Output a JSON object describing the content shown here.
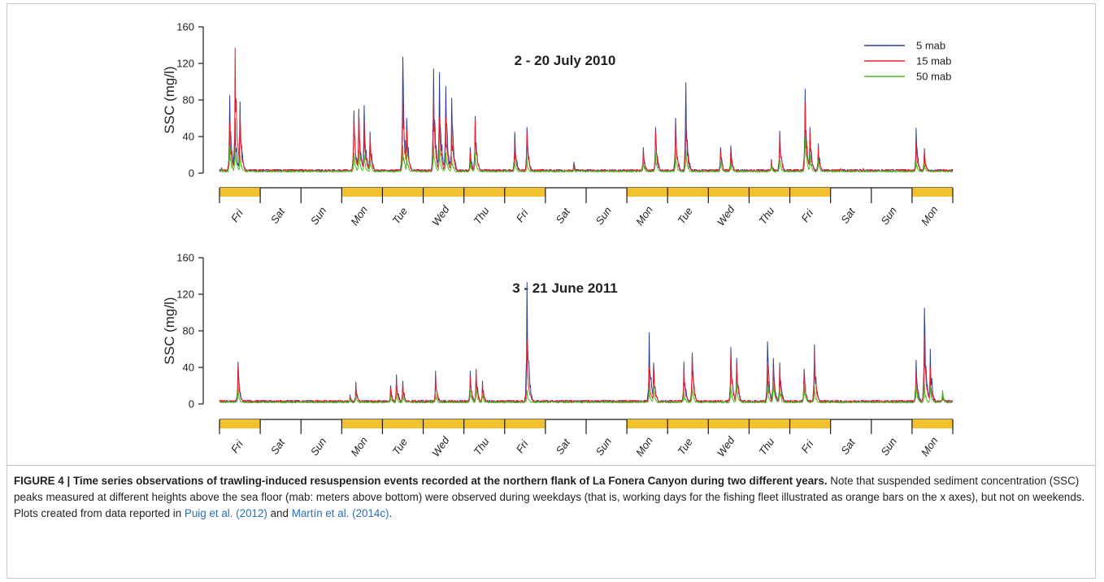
{
  "figure": {
    "caption_lead": "FIGURE 4 | Time series observations of trawling-induced resuspension events recorded at the northern flank of La Fonera Canyon during two different years.",
    "caption_body_1": " Note that suspended sediment concentration (SSC) peaks measured at different heights above the sea floor (mab: meters above bottom) were observed during weekdays (that is, working days for the fishing fleet illustrated as orange bars on the x axes), but not on weekends. Plots created from data reported in ",
    "ref_1": "Puig et al. (2012)",
    "caption_and": " and ",
    "ref_2": "Martín et al. (2014c)",
    "caption_end": "."
  },
  "colors": {
    "series_5": "#2b3f99",
    "series_15": "#e8202a",
    "series_50": "#4cb81e",
    "workday_bar": "#f2c12e",
    "axis": "#1a1a1a",
    "reference_link": "#2a6ebb"
  },
  "chart_data": [
    {
      "type": "line",
      "title": "2 - 20 July 2010",
      "ylabel": "SSC (mg/l)",
      "ylim": [
        0,
        160
      ],
      "yticks": [
        0,
        40,
        80,
        120,
        160
      ],
      "xlim": [
        0,
        18
      ],
      "day_labels": [
        "Fri",
        "Sat",
        "Sun",
        "Mon",
        "Tue",
        "Wed",
        "Thu",
        "Fri",
        "Sat",
        "Sun",
        "Mon",
        "Tue",
        "Wed",
        "Thu",
        "Fri",
        "Sat",
        "Sun",
        "Mon"
      ],
      "workdays": [
        true,
        false,
        false,
        true,
        true,
        true,
        true,
        true,
        false,
        false,
        true,
        true,
        true,
        true,
        true,
        false,
        false,
        true
      ],
      "legend": {
        "position": "top-right",
        "entries": [
          "5 mab",
          "15 mab",
          "50 mab"
        ]
      },
      "series": [
        {
          "name": "5 mab",
          "peaks": [
            [
              0.05,
              6
            ],
            [
              0.25,
              85
            ],
            [
              0.38,
              60
            ],
            [
              0.5,
              78
            ],
            [
              3.3,
              68
            ],
            [
              3.42,
              70
            ],
            [
              3.55,
              74
            ],
            [
              3.7,
              45
            ],
            [
              4.5,
              127
            ],
            [
              4.6,
              60
            ],
            [
              5.25,
              114
            ],
            [
              5.4,
              110
            ],
            [
              5.55,
              95
            ],
            [
              5.7,
              82
            ],
            [
              6.28,
              62
            ],
            [
              6.15,
              28
            ],
            [
              7.25,
              45
            ],
            [
              7.55,
              50
            ],
            [
              8.7,
              12
            ],
            [
              10.4,
              28
            ],
            [
              10.7,
              50
            ],
            [
              11.2,
              60
            ],
            [
              11.45,
              99
            ],
            [
              12.3,
              28
            ],
            [
              12.55,
              30
            ],
            [
              13.55,
              15
            ],
            [
              13.75,
              46
            ],
            [
              14.38,
              92
            ],
            [
              14.5,
              50
            ],
            [
              14.7,
              32
            ],
            [
              15.25,
              5
            ],
            [
              15.8,
              5
            ],
            [
              17.1,
              49
            ],
            [
              17.3,
              27
            ]
          ],
          "baseline": 3
        },
        {
          "name": "15 mab",
          "peaks": [
            [
              0.05,
              5
            ],
            [
              0.25,
              55
            ],
            [
              0.38,
              137
            ],
            [
              0.5,
              65
            ],
            [
              3.3,
              60
            ],
            [
              3.42,
              66
            ],
            [
              3.55,
              56
            ],
            [
              3.7,
              40
            ],
            [
              4.5,
              88
            ],
            [
              4.6,
              48
            ],
            [
              5.25,
              85
            ],
            [
              5.4,
              60
            ],
            [
              5.55,
              60
            ],
            [
              5.7,
              55
            ],
            [
              6.28,
              58
            ],
            [
              6.15,
              22
            ],
            [
              7.25,
              35
            ],
            [
              7.55,
              45
            ],
            [
              8.7,
              9
            ],
            [
              10.4,
              25
            ],
            [
              10.7,
              45
            ],
            [
              11.2,
              50
            ],
            [
              11.45,
              58
            ],
            [
              12.3,
              24
            ],
            [
              12.55,
              25
            ],
            [
              13.55,
              12
            ],
            [
              13.75,
              40
            ],
            [
              14.38,
              78
            ],
            [
              14.5,
              45
            ],
            [
              14.7,
              28
            ],
            [
              15.25,
              4
            ],
            [
              15.8,
              4
            ],
            [
              17.1,
              35
            ],
            [
              17.3,
              25
            ]
          ],
          "baseline": 3
        },
        {
          "name": "50 mab",
          "peaks": [
            [
              0.05,
              4
            ],
            [
              0.25,
              28
            ],
            [
              0.38,
              30
            ],
            [
              0.5,
              20
            ],
            [
              3.3,
              22
            ],
            [
              3.42,
              25
            ],
            [
              3.55,
              20
            ],
            [
              3.7,
              15
            ],
            [
              4.5,
              30
            ],
            [
              4.6,
              20
            ],
            [
              5.25,
              30
            ],
            [
              5.4,
              25
            ],
            [
              5.55,
              22
            ],
            [
              5.7,
              18
            ],
            [
              6.28,
              22
            ],
            [
              6.15,
              12
            ],
            [
              7.25,
              15
            ],
            [
              7.55,
              16
            ],
            [
              8.7,
              5
            ],
            [
              10.4,
              12
            ],
            [
              10.7,
              22
            ],
            [
              11.2,
              20
            ],
            [
              11.45,
              25
            ],
            [
              12.3,
              12
            ],
            [
              12.55,
              12
            ],
            [
              13.55,
              8
            ],
            [
              13.75,
              16
            ],
            [
              14.38,
              38
            ],
            [
              14.5,
              20
            ],
            [
              14.7,
              14
            ],
            [
              15.25,
              3
            ],
            [
              15.8,
              3
            ],
            [
              17.1,
              14
            ],
            [
              17.3,
              12
            ]
          ],
          "baseline": 2
        }
      ]
    },
    {
      "type": "line",
      "title": "3 - 21 June 2011",
      "ylabel": "SSC (mg/l)",
      "ylim": [
        0,
        160
      ],
      "yticks": [
        0,
        40,
        80,
        120,
        160
      ],
      "xlim": [
        0,
        18
      ],
      "day_labels": [
        "Fri",
        "Sat",
        "Sun",
        "Mon",
        "Tue",
        "Wed",
        "Thu",
        "Fri",
        "Sat",
        "Sun",
        "Mon",
        "Tue",
        "Wed",
        "Thu",
        "Fri",
        "Sat",
        "Sun",
        "Mon"
      ],
      "workdays": [
        true,
        false,
        false,
        true,
        true,
        true,
        true,
        true,
        false,
        false,
        true,
        true,
        true,
        true,
        true,
        false,
        false,
        true
      ],
      "legend": {
        "position": "none",
        "entries": []
      },
      "series": [
        {
          "name": "5 mab",
          "peaks": [
            [
              0.45,
              46
            ],
            [
              3.2,
              10
            ],
            [
              3.35,
              24
            ],
            [
              4.2,
              20
            ],
            [
              4.35,
              32
            ],
            [
              4.5,
              25
            ],
            [
              5.3,
              36
            ],
            [
              6.15,
              36
            ],
            [
              6.3,
              38
            ],
            [
              6.45,
              25
            ],
            [
              7.55,
              133
            ],
            [
              10.55,
              78
            ],
            [
              10.65,
              45
            ],
            [
              11.4,
              46
            ],
            [
              11.6,
              56
            ],
            [
              12.55,
              62
            ],
            [
              12.7,
              50
            ],
            [
              13.45,
              68
            ],
            [
              13.6,
              50
            ],
            [
              13.75,
              45
            ],
            [
              14.35,
              38
            ],
            [
              14.6,
              65
            ],
            [
              17.1,
              48
            ],
            [
              17.3,
              105
            ],
            [
              17.45,
              60
            ],
            [
              17.75,
              12
            ]
          ],
          "baseline": 3
        },
        {
          "name": "15 mab",
          "peaks": [
            [
              0.45,
              42
            ],
            [
              3.2,
              8
            ],
            [
              3.35,
              20
            ],
            [
              4.2,
              17
            ],
            [
              4.35,
              28
            ],
            [
              4.5,
              22
            ],
            [
              5.3,
              32
            ],
            [
              6.15,
              30
            ],
            [
              6.3,
              35
            ],
            [
              6.45,
              22
            ],
            [
              7.55,
              70
            ],
            [
              10.55,
              40
            ],
            [
              10.65,
              40
            ],
            [
              11.4,
              40
            ],
            [
              11.6,
              55
            ],
            [
              12.55,
              55
            ],
            [
              12.7,
              45
            ],
            [
              13.45,
              42
            ],
            [
              13.6,
              40
            ],
            [
              13.75,
              40
            ],
            [
              14.35,
              35
            ],
            [
              14.6,
              58
            ],
            [
              17.1,
              35
            ],
            [
              17.3,
              75
            ],
            [
              17.45,
              40
            ],
            [
              17.75,
              10
            ]
          ],
          "baseline": 3
        },
        {
          "name": "50 mab",
          "peaks": [
            [
              0.45,
              15
            ],
            [
              3.2,
              6
            ],
            [
              3.35,
              10
            ],
            [
              4.2,
              8
            ],
            [
              4.35,
              12
            ],
            [
              4.5,
              10
            ],
            [
              5.3,
              12
            ],
            [
              6.15,
              15
            ],
            [
              6.3,
              18
            ],
            [
              6.45,
              12
            ],
            [
              7.55,
              15
            ],
            [
              10.55,
              15
            ],
            [
              10.65,
              18
            ],
            [
              11.4,
              14
            ],
            [
              11.6,
              18
            ],
            [
              12.55,
              20
            ],
            [
              12.7,
              22
            ],
            [
              13.45,
              20
            ],
            [
              13.6,
              25
            ],
            [
              13.75,
              18
            ],
            [
              14.35,
              22
            ],
            [
              14.6,
              20
            ],
            [
              17.1,
              20
            ],
            [
              17.3,
              22
            ],
            [
              17.45,
              18
            ],
            [
              17.75,
              15
            ]
          ],
          "baseline": 2
        }
      ]
    }
  ]
}
